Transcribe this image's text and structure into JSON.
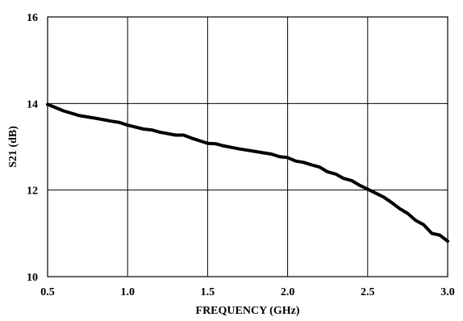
{
  "chart_data": {
    "type": "line",
    "title": "",
    "xlabel": "FREQUENCY (GHz)",
    "ylabel": "S21 (dB)",
    "xlim": [
      0.5,
      3.0
    ],
    "ylim": [
      10,
      16
    ],
    "xticks": [
      "0.5",
      "1.0",
      "1.5",
      "2.0",
      "2.5",
      "3.0"
    ],
    "yticks": [
      "10",
      "12",
      "14",
      "16"
    ],
    "grid": true,
    "legend": "none",
    "line_color": "#000000",
    "series": [
      {
        "x": [
          0.5,
          0.6,
          0.7,
          0.8,
          0.9,
          0.95,
          1.0,
          1.1,
          1.15,
          1.2,
          1.3,
          1.35,
          1.4,
          1.5,
          1.55,
          1.6,
          1.7,
          1.8,
          1.9,
          1.95,
          2.0,
          2.05,
          2.1,
          2.15,
          2.2,
          2.25,
          2.3,
          2.35,
          2.4,
          2.45,
          2.5,
          2.55,
          2.6,
          2.65,
          2.7,
          2.75,
          2.8,
          2.85,
          2.9,
          2.95,
          3.0
        ],
        "values": [
          13.98,
          13.83,
          13.72,
          13.66,
          13.59,
          13.56,
          13.5,
          13.41,
          13.39,
          13.34,
          13.27,
          13.27,
          13.2,
          13.08,
          13.07,
          13.02,
          12.95,
          12.89,
          12.83,
          12.77,
          12.75,
          12.67,
          12.64,
          12.58,
          12.53,
          12.42,
          12.37,
          12.27,
          12.22,
          12.11,
          12.02,
          11.93,
          11.84,
          11.71,
          11.57,
          11.46,
          11.3,
          11.2,
          11.0,
          10.96,
          10.82
        ]
      }
    ]
  }
}
